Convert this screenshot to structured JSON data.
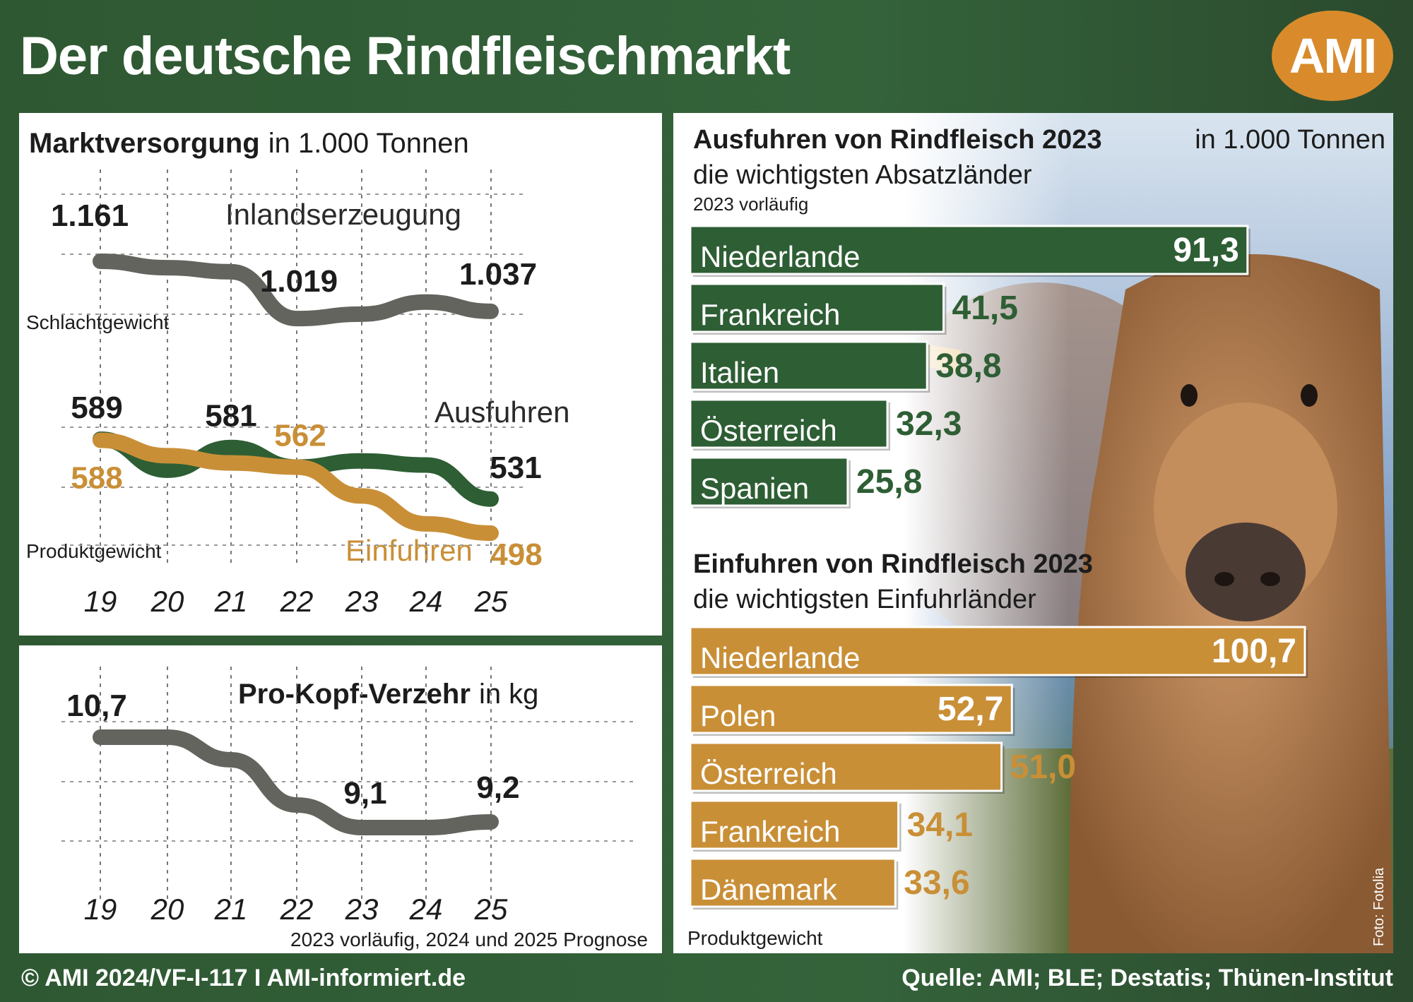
{
  "title": "Der deutsche Rindfleischmarkt",
  "logo": "AMI",
  "colors": {
    "green": "#2e5e34",
    "orange": "#c98f37",
    "gray": "#64645e",
    "bg": "#2f5a33"
  },
  "years": [
    "19",
    "20",
    "21",
    "22",
    "23",
    "24",
    "25"
  ],
  "chart_data": [
    {
      "type": "line",
      "title": "Marktversorgung",
      "title_unit": "in 1.000 Tonnen",
      "ylabel": "Schlachtgewicht",
      "series": [
        {
          "name": "Inlandserzeugung",
          "values": [
            1161,
            1145,
            1135,
            1019,
            1030,
            1060,
            1037
          ],
          "labels": [
            "1.161",
            "",
            "",
            "1.019",
            "",
            "",
            "1.037"
          ]
        }
      ]
    },
    {
      "type": "line",
      "ylabel": "Produktgewicht",
      "series": [
        {
          "name": "Ausfuhren",
          "values": [
            589,
            559,
            581,
            562,
            568,
            564,
            531
          ],
          "labels": [
            "589",
            "",
            "581",
            "",
            "",
            "",
            "531"
          ]
        },
        {
          "name": "Einfuhren",
          "values": [
            588,
            573,
            566,
            562,
            534,
            507,
            498
          ],
          "labels": [
            "588",
            "",
            "",
            "562",
            "",
            "",
            "498"
          ]
        }
      ]
    },
    {
      "type": "line",
      "title": "Pro-Kopf-Verzehr",
      "title_unit": "in kg",
      "series": [
        {
          "name": "Pro-Kopf-Verzehr",
          "values": [
            10.7,
            10.7,
            10.3,
            9.5,
            9.1,
            9.1,
            9.2
          ],
          "labels": [
            "10,7",
            "",
            "",
            "",
            "9,1",
            "",
            "9,2"
          ]
        }
      ],
      "note": "2023 vorläufig, 2024 und 2025 Prognose"
    },
    {
      "type": "bar",
      "title": "Ausfuhren von Rindfleisch 2023",
      "title_unit": "in 1.000 Tonnen",
      "subtitle": "die wichtigsten Absatzländer",
      "note": "2023 vorläufig",
      "categories": [
        "Niederlande",
        "Frankreich",
        "Italien",
        "Österreich",
        "Spanien"
      ],
      "values": [
        91.3,
        41.5,
        38.8,
        32.3,
        25.8
      ],
      "value_labels": [
        "91,3",
        "41,5",
        "38,8",
        "32,3",
        "25,8"
      ]
    },
    {
      "type": "bar",
      "title": "Einfuhren von Rindfleisch 2023",
      "subtitle": "die wichtigsten Einfuhrländer",
      "note": "Produktgewicht",
      "categories": [
        "Niederlande",
        "Polen",
        "Österreich",
        "Frankreich",
        "Dänemark"
      ],
      "values": [
        100.7,
        52.7,
        51.0,
        34.1,
        33.6
      ],
      "value_labels": [
        "100,7",
        "52,7",
        "51,0",
        "34,1",
        "33,6"
      ]
    }
  ],
  "photo_credit": "Foto: Fotolia",
  "footer": {
    "left": "© AMI 2024/VF-I-117 I AMI-informiert.de",
    "right": "Quelle: AMI; BLE; Destatis; Thünen-Institut"
  }
}
